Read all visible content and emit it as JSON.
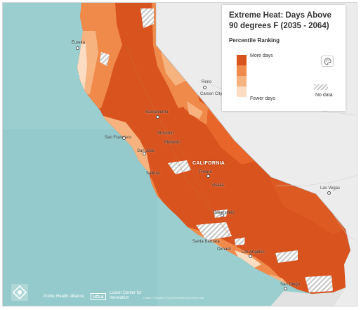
{
  "legend": {
    "title": "Extreme Heat: Days Above 90 degrees F (2035 - 2064)",
    "subtitle": "Percentile Ranking",
    "more_label": "More days",
    "fewer_label": "Fewer days",
    "no_data_label": "No data",
    "swatch_colors": [
      "#d9531e",
      "#f08a4b",
      "#f6b37f",
      "#fcdcc2"
    ],
    "palette_icon": "palette-icon"
  },
  "map": {
    "colors": {
      "ocean": "#9bcfcf",
      "land": "#ececec",
      "darkest": "#d9531e",
      "dark": "#e8662a",
      "mid": "#f08a4b",
      "light": "#f6b37f",
      "lightest": "#fcdcc2",
      "nodata": "#c8c8c8"
    },
    "labels": {
      "eureka": "Eureka",
      "reno": "Reno",
      "carson": "Carson City",
      "sacramento": "Sacramento",
      "stockton": "Stockton",
      "modesto": "Modesto",
      "sf": "San Francisco",
      "sanjose": "San Jose",
      "salinas": "Salinas",
      "california": "CALIFORNIA",
      "fresno": "Fresno",
      "visalia": "Visalia",
      "bakersfield": "Bakersfield",
      "lasvegas": "Las Vegas",
      "santabarbara": "Santa Barbara",
      "oxnard": "Oxnard",
      "losangeles": "Los Angeles",
      "sandiego": "San Diego"
    }
  },
  "attribution": {
    "pha": "Public Health Alliance",
    "ucla": "UCLA",
    "luskin": "Luskin Center for Innovation",
    "credit": "Leaflet | © Mapbox © OpenStreetMap Improve this map"
  }
}
